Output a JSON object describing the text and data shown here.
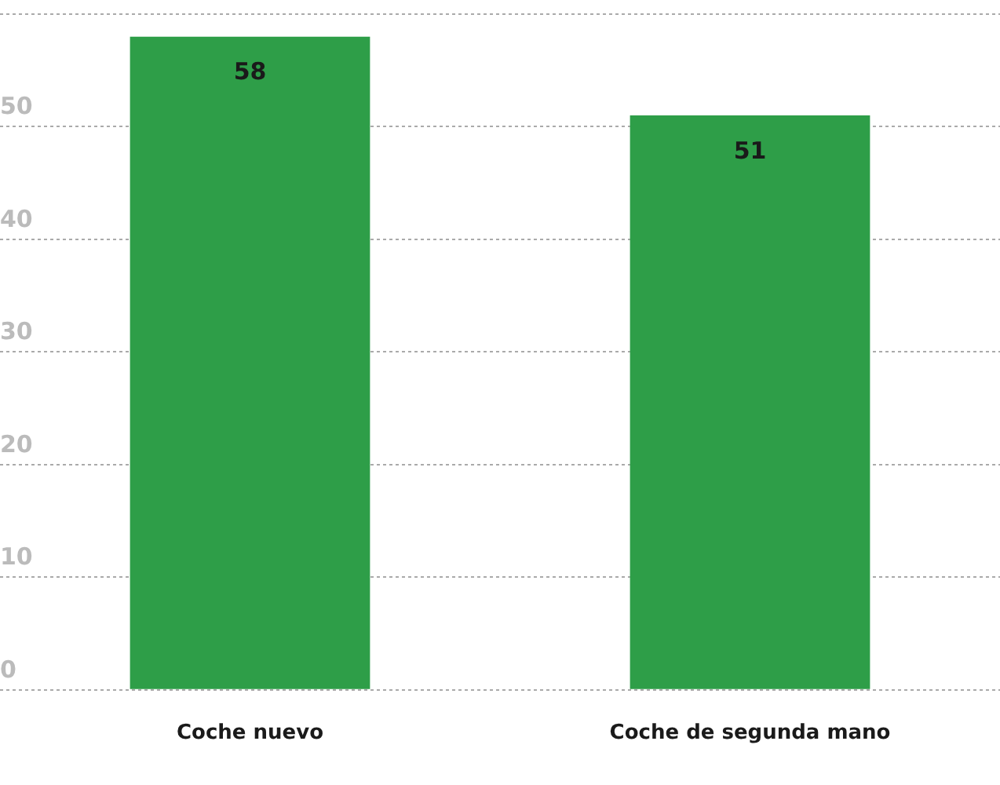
{
  "chart_data": {
    "type": "bar",
    "categories": [
      "Coche nuevo",
      "Coche de segunda mano"
    ],
    "values": [
      58,
      51
    ],
    "color": "#2e9e48",
    "ylim": [
      0,
      60
    ],
    "yticks": [
      0,
      10,
      20,
      30,
      40,
      50,
      {
        "value": 60,
        "label": null
      }
    ],
    "grid": "y",
    "data_labels": true
  }
}
